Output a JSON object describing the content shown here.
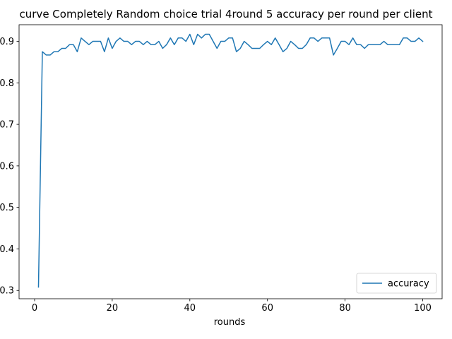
{
  "chart_data": {
    "type": "line",
    "title": "curve Completely Random choice trial 4round 5 accuracy per round per client",
    "xlabel": "rounds",
    "ylabel": "",
    "xlim": [
      -4,
      105
    ],
    "ylim": [
      0.28,
      0.94
    ],
    "xticks": [
      0,
      20,
      40,
      60,
      80,
      100
    ],
    "yticks": [
      0.3,
      0.4,
      0.5,
      0.6,
      0.7,
      0.8,
      0.9
    ],
    "ytick_labels": [
      "0.3",
      "0.4",
      "0.5",
      "0.6",
      "0.7",
      "0.8",
      "0.9"
    ],
    "grid": false,
    "legend_position": "lower-right",
    "series": [
      {
        "name": "accuracy",
        "color": "#1f77b4",
        "x": [
          1,
          2,
          3,
          4,
          5,
          6,
          7,
          8,
          9,
          10,
          11,
          12,
          13,
          14,
          15,
          16,
          17,
          18,
          19,
          20,
          21,
          22,
          23,
          24,
          25,
          26,
          27,
          28,
          29,
          30,
          31,
          32,
          33,
          34,
          35,
          36,
          37,
          38,
          39,
          40,
          41,
          42,
          43,
          44,
          45,
          46,
          47,
          48,
          49,
          50,
          51,
          52,
          53,
          54,
          55,
          56,
          57,
          58,
          59,
          60,
          61,
          62,
          63,
          64,
          65,
          66,
          67,
          68,
          69,
          70,
          71,
          72,
          73,
          74,
          75,
          76,
          77,
          78,
          79,
          80,
          81,
          82,
          83,
          84,
          85,
          86,
          87,
          88,
          89,
          90,
          91,
          92,
          93,
          94,
          95,
          96,
          97,
          98,
          99,
          100
        ],
        "values": [
          0.308,
          0.875,
          0.867,
          0.867,
          0.875,
          0.875,
          0.883,
          0.883,
          0.892,
          0.892,
          0.875,
          0.908,
          0.9,
          0.892,
          0.9,
          0.9,
          0.9,
          0.875,
          0.908,
          0.883,
          0.9,
          0.908,
          0.9,
          0.9,
          0.892,
          0.9,
          0.9,
          0.892,
          0.9,
          0.892,
          0.892,
          0.9,
          0.883,
          0.892,
          0.908,
          0.892,
          0.908,
          0.908,
          0.9,
          0.917,
          0.892,
          0.917,
          0.908,
          0.917,
          0.917,
          0.9,
          0.883,
          0.9,
          0.9,
          0.908,
          0.908,
          0.875,
          0.883,
          0.9,
          0.892,
          0.883,
          0.883,
          0.883,
          0.892,
          0.9,
          0.892,
          0.908,
          0.892,
          0.875,
          0.883,
          0.9,
          0.892,
          0.883,
          0.883,
          0.892,
          0.908,
          0.908,
          0.9,
          0.908,
          0.908,
          0.908,
          0.867,
          0.883,
          0.9,
          0.9,
          0.892,
          0.908,
          0.892,
          0.892,
          0.883,
          0.892,
          0.892,
          0.892,
          0.892,
          0.9,
          0.892,
          0.892,
          0.892,
          0.892,
          0.908,
          0.908,
          0.9,
          0.9,
          0.908,
          0.9
        ]
      }
    ]
  }
}
